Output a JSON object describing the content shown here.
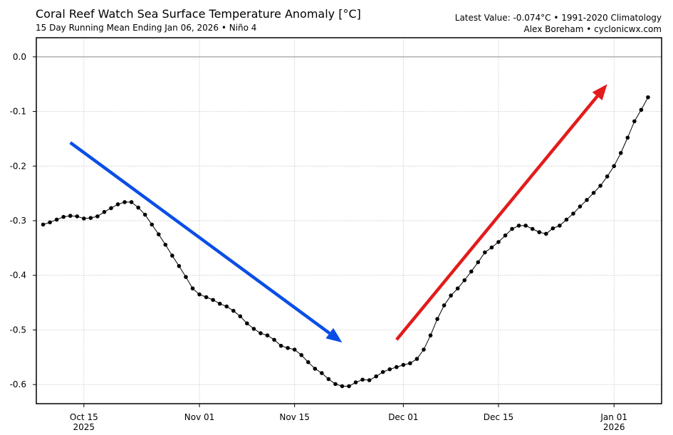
{
  "header": {
    "title": "Coral Reef Watch Sea Surface Temperature Anomaly [°C]",
    "subtitle": "15 Day Running Mean Ending Jan 06, 2026 • Niño 4",
    "info_line1": "Latest Value: -0.074°C • 1991-2020 Climatology",
    "info_line2": "Alex Boreham • cyclonicwx.com"
  },
  "chart_data": {
    "type": "line",
    "x_start": "2025-10-09",
    "x_end": "2026-01-06",
    "xlim": [
      "2025-10-08",
      "2026-01-08"
    ],
    "ylim": [
      -0.635,
      0.035
    ],
    "grid": true,
    "y_ticks": [
      {
        "value": 0.0,
        "label": "0.0"
      },
      {
        "value": -0.1,
        "label": "-0.1"
      },
      {
        "value": -0.2,
        "label": "-0.2"
      },
      {
        "value": -0.3,
        "label": "-0.3"
      },
      {
        "value": -0.4,
        "label": "-0.4"
      },
      {
        "value": -0.5,
        "label": "-0.5"
      },
      {
        "value": -0.6,
        "label": "-0.6"
      }
    ],
    "x_ticks": [
      {
        "date": "2025-10-15",
        "label": "Oct 15",
        "label2": "2025"
      },
      {
        "date": "2025-11-01",
        "label": "Nov 01",
        "label2": ""
      },
      {
        "date": "2025-11-15",
        "label": "Nov 15",
        "label2": ""
      },
      {
        "date": "2025-12-01",
        "label": "Dec 01",
        "label2": ""
      },
      {
        "date": "2025-12-15",
        "label": "Dec 15",
        "label2": ""
      },
      {
        "date": "2026-01-01",
        "label": "Jan 01",
        "label2": "2026"
      }
    ],
    "values": [
      -0.307,
      -0.303,
      -0.298,
      -0.293,
      -0.291,
      -0.292,
      -0.296,
      -0.295,
      -0.292,
      -0.284,
      -0.277,
      -0.27,
      -0.266,
      -0.266,
      -0.276,
      -0.289,
      -0.307,
      -0.325,
      -0.344,
      -0.364,
      -0.383,
      -0.403,
      -0.424,
      -0.435,
      -0.44,
      -0.445,
      -0.452,
      -0.457,
      -0.465,
      -0.475,
      -0.488,
      -0.498,
      -0.506,
      -0.51,
      -0.518,
      -0.529,
      -0.533,
      -0.536,
      -0.546,
      -0.559,
      -0.571,
      -0.579,
      -0.59,
      -0.599,
      -0.603,
      -0.603,
      -0.596,
      -0.591,
      -0.592,
      -0.585,
      -0.577,
      -0.572,
      -0.568,
      -0.564,
      -0.561,
      -0.553,
      -0.536,
      -0.51,
      -0.48,
      -0.455,
      -0.437,
      -0.424,
      -0.409,
      -0.393,
      -0.376,
      -0.358,
      -0.349,
      -0.339,
      -0.327,
      -0.315,
      -0.309,
      -0.309,
      -0.315,
      -0.321,
      -0.324,
      -0.314,
      -0.309,
      -0.298,
      -0.287,
      -0.274,
      -0.262,
      -0.249,
      -0.236,
      -0.219,
      -0.2,
      -0.176,
      -0.148,
      -0.118,
      -0.097,
      -0.074
    ],
    "annotations": [
      {
        "type": "arrow",
        "color": "#0a4ee6",
        "from": [
          "2025-10-13",
          -0.157
        ],
        "to": [
          "2025-11-22",
          -0.523
        ]
      },
      {
        "type": "arrow",
        "color": "#e31b1b",
        "from": [
          "2025-11-30",
          -0.518
        ],
        "to": [
          "2025-12-31",
          -0.05
        ]
      }
    ],
    "line_color": "#000000"
  }
}
